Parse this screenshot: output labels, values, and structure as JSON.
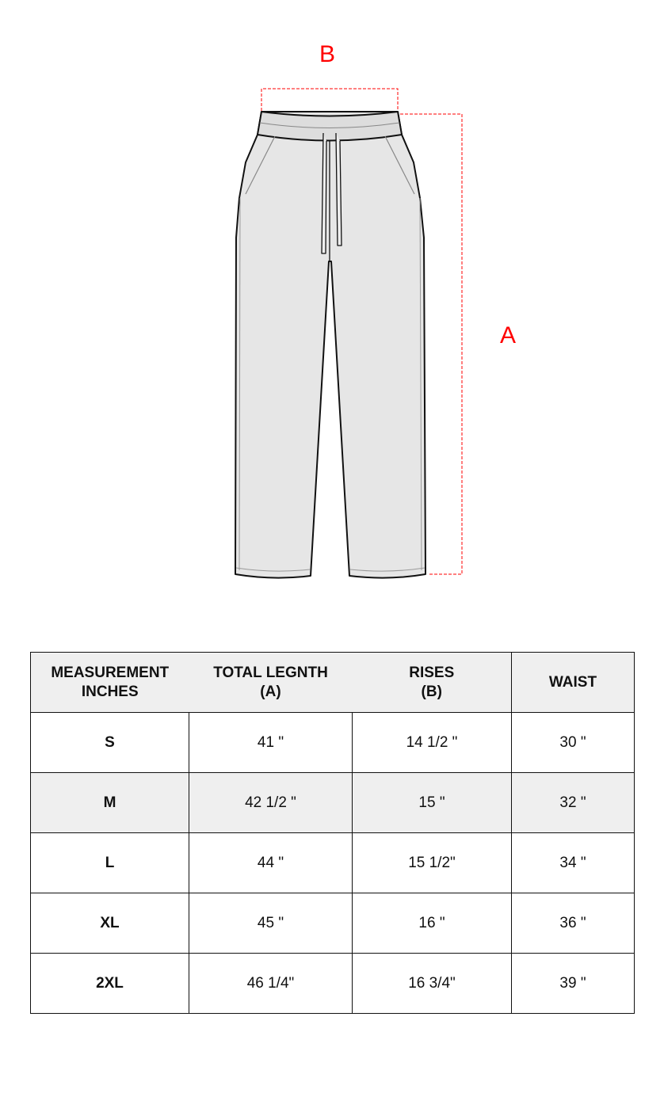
{
  "diagram": {
    "label_a": "A",
    "label_b": "B",
    "colors": {
      "measure_line": "#ff0000",
      "garment_fill": "#e6e6e6",
      "outline": "#111111"
    }
  },
  "table": {
    "headers": [
      [
        "MEASUREMENT",
        "INCHES"
      ],
      [
        "TOTAL LEGNTH",
        "(A)"
      ],
      [
        "RISES",
        "(B)"
      ],
      [
        "WAIST"
      ]
    ],
    "rows": [
      {
        "size": "S",
        "total_length": "41 \"",
        "rises": "14 1/2 \"",
        "waist": "30 \""
      },
      {
        "size": "M",
        "total_length": "42 1/2 \"",
        "rises": "15 \"",
        "waist": "32 \""
      },
      {
        "size": "L",
        "total_length": "44 \"",
        "rises": "15 1/2\"",
        "waist": "34 \""
      },
      {
        "size": "XL",
        "total_length": "45 \"",
        "rises": "16 \"",
        "waist": "36 \""
      },
      {
        "size": "2XL",
        "total_length": "46 1/4\"",
        "rises": "16 3/4\"",
        "waist": "39 \""
      }
    ]
  }
}
